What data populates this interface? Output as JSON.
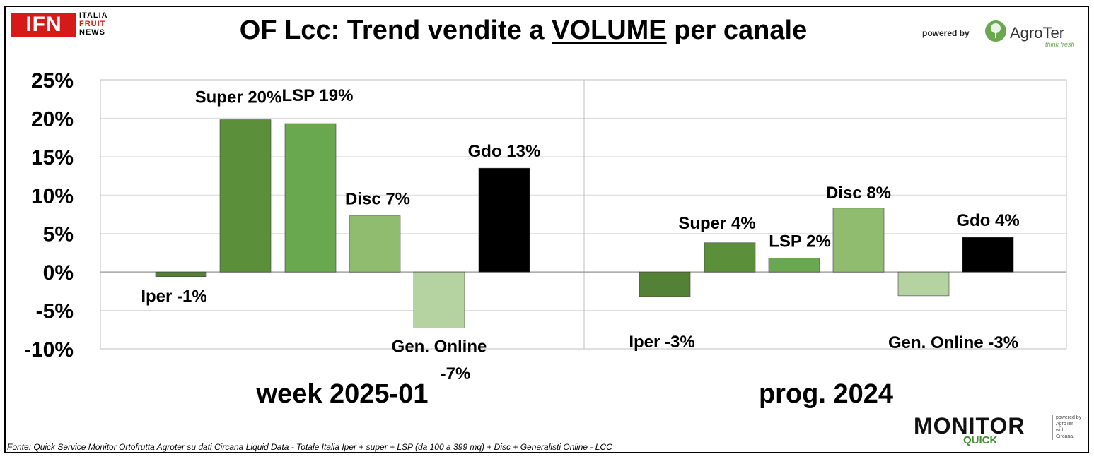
{
  "header": {
    "title_prefix": "OF Lcc: Trend vendite a ",
    "title_underlined": "VOLUME",
    "title_suffix": " per canale",
    "ifn_logo": "IFN",
    "ifn_line1": "ITALIA",
    "ifn_line2": "FRUIT",
    "ifn_line3": "NEWS",
    "powered_by": "powered by",
    "agroter": "AgroTer",
    "agroter_tagline": "think fresh"
  },
  "footer": {
    "source": "Fonte: Quick Service Monitor Ortofrutta Agroter su dati Circana Liquid Data - Totale Italia Iper + super + LSP (da 100 a 399 mq) + Disc + Generalisti Online - LCC",
    "monitor": "MONITOR",
    "quick": "QUICK",
    "side_powered": "powered by",
    "side_agroter": "AgroTer",
    "side_with": "with",
    "side_circana": "Circana."
  },
  "colors": {
    "iper": "#538135",
    "super": "#5b8f3a",
    "lsp": "#6aa84f",
    "disc": "#8fbc6f",
    "online": "#b5d3a0",
    "gdo": "#000000"
  },
  "chart_data": {
    "type": "bar",
    "ylim": [
      -10,
      25
    ],
    "yticks": [
      "25%",
      "20%",
      "15%",
      "10%",
      "5%",
      "0%",
      "-5%",
      "-10%"
    ],
    "ytick_values": [
      25,
      20,
      15,
      10,
      5,
      0,
      -5,
      -10
    ],
    "grid": true,
    "panels": [
      {
        "group_label": "week 2025-01",
        "categories": [
          "Iper",
          "Super",
          "LSP",
          "Disc",
          "Gen. Online",
          "Gdo"
        ],
        "values": [
          -0.6,
          19.8,
          19.3,
          7.3,
          -7.3,
          13.5
        ],
        "data_labels": [
          "Iper -1%",
          "Super 20%",
          "LSP 19%",
          "Disc 7%",
          "Gen. Online",
          "Gdo 13%"
        ],
        "extra_label": "-7%"
      },
      {
        "group_label": "prog. 2024",
        "categories": [
          "Iper",
          "Super",
          "LSP",
          "Disc",
          "Gen. Online",
          "Gdo"
        ],
        "values": [
          -3.2,
          3.8,
          1.8,
          8.3,
          -3.1,
          4.5
        ],
        "data_labels": [
          "Iper -3%",
          "Super 4%",
          "LSP 2%",
          "Disc 8%",
          "Gen. Online -3%",
          "Gdo 4%"
        ]
      }
    ]
  }
}
